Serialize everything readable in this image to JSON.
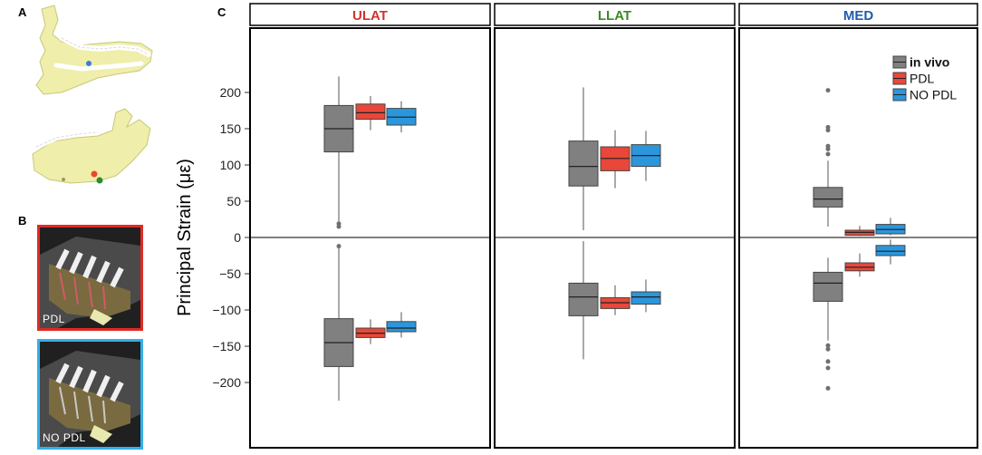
{
  "panel_letters": {
    "a": "A",
    "b": "B",
    "c": "C"
  },
  "image_labels": {
    "pdl": "PDL",
    "no_pdl": "NO PDL"
  },
  "colors": {
    "in_vivo": "#808080",
    "pdl": "#e8473a",
    "no_pdl": "#2b96dc",
    "ulat_title": "#d0342c",
    "llat_title": "#3d8a1f",
    "med_title": "#1f5cb0",
    "bone": "#efeeaa",
    "pdl_frame": "#e02a26",
    "no_pdl_frame": "#33b0e8"
  },
  "chart_data": {
    "type": "box",
    "ylabel": "Principal Strain (με)",
    "ylim": [
      -240,
      245
    ],
    "yticks": [
      -200,
      -150,
      -100,
      -50,
      0,
      50,
      100,
      150,
      200
    ],
    "legend": {
      "placement": "top-right",
      "panel": "MED",
      "entries": [
        "in vivo",
        "PDL",
        "NO PDL"
      ]
    },
    "series": [
      "in vivo",
      "PDL",
      "NO PDL"
    ],
    "facets": [
      {
        "title": "ULAT",
        "boxes": [
          {
            "series": "in vivo",
            "sign": "positive",
            "low": 22,
            "q1": 118,
            "median": 150,
            "q3": 182,
            "high": 222,
            "outliers": [
              15,
              19
            ]
          },
          {
            "series": "PDL",
            "sign": "positive",
            "low": 148,
            "q1": 163,
            "median": 172,
            "q3": 184,
            "high": 195,
            "outliers": []
          },
          {
            "series": "NO PDL",
            "sign": "positive",
            "low": 145,
            "q1": 155,
            "median": 166,
            "q3": 178,
            "high": 188,
            "outliers": []
          },
          {
            "series": "in vivo",
            "sign": "negative",
            "low": -225,
            "q1": -178,
            "median": -145,
            "q3": -112,
            "high": -15,
            "outliers": [
              -12
            ]
          },
          {
            "series": "PDL",
            "sign": "negative",
            "low": -147,
            "q1": -138,
            "median": -132,
            "q3": -125,
            "high": -113,
            "outliers": []
          },
          {
            "series": "NO PDL",
            "sign": "negative",
            "low": -138,
            "q1": -130,
            "median": -125,
            "q3": -116,
            "high": -103,
            "outliers": []
          }
        ]
      },
      {
        "title": "LLAT",
        "boxes": [
          {
            "series": "in vivo",
            "sign": "positive",
            "low": 10,
            "q1": 71,
            "median": 98,
            "q3": 133,
            "high": 207,
            "outliers": []
          },
          {
            "series": "PDL",
            "sign": "positive",
            "low": 68,
            "q1": 92,
            "median": 109,
            "q3": 125,
            "high": 148,
            "outliers": []
          },
          {
            "series": "NO PDL",
            "sign": "positive",
            "low": 78,
            "q1": 98,
            "median": 113,
            "q3": 128,
            "high": 147,
            "outliers": []
          },
          {
            "series": "in vivo",
            "sign": "negative",
            "low": -168,
            "q1": -108,
            "median": -82,
            "q3": -63,
            "high": -5,
            "outliers": []
          },
          {
            "series": "PDL",
            "sign": "negative",
            "low": -107,
            "q1": -98,
            "median": -90,
            "q3": -83,
            "high": -66,
            "outliers": []
          },
          {
            "series": "NO PDL",
            "sign": "negative",
            "low": -103,
            "q1": -92,
            "median": -82,
            "q3": -75,
            "high": -58,
            "outliers": []
          }
        ]
      },
      {
        "title": "MED",
        "boxes": [
          {
            "series": "in vivo",
            "sign": "positive",
            "low": 15,
            "q1": 42,
            "median": 53,
            "q3": 69,
            "high": 106,
            "outliers": [
              115,
              122,
              126,
              148,
              152,
              203
            ]
          },
          {
            "series": "PDL",
            "sign": "positive",
            "low": 2,
            "q1": 3,
            "median": 7,
            "q3": 10,
            "high": 16,
            "outliers": []
          },
          {
            "series": "NO PDL",
            "sign": "positive",
            "low": 3,
            "q1": 5,
            "median": 11,
            "q3": 18,
            "high": 27,
            "outliers": []
          },
          {
            "series": "in vivo",
            "sign": "negative",
            "low": -142,
            "q1": -88,
            "median": -63,
            "q3": -48,
            "high": -28,
            "outliers": [
              -149,
              -154,
              -171,
              -180,
              -208
            ]
          },
          {
            "series": "PDL",
            "sign": "negative",
            "low": -54,
            "q1": -46,
            "median": -41,
            "q3": -35,
            "high": -22,
            "outliers": []
          },
          {
            "series": "NO PDL",
            "sign": "negative",
            "low": -37,
            "q1": -25,
            "median": -19,
            "q3": -11,
            "high": -3,
            "outliers": []
          }
        ]
      }
    ]
  }
}
